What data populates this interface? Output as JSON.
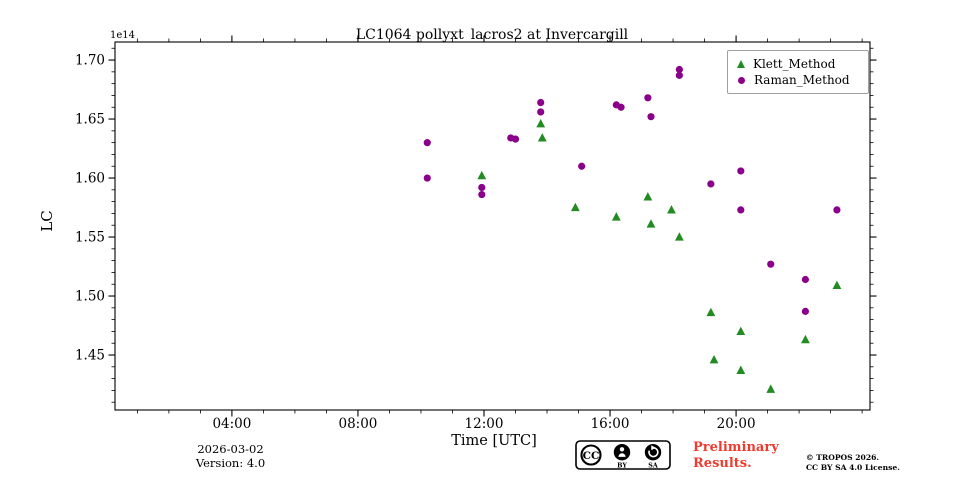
{
  "title": "LC1064 pollyxt_lacros2 at Invercargill",
  "offset_label": "1e14",
  "axes": {
    "xlabel": "Time [UTC]",
    "ylabel": "LC",
    "xlim": [
      0.29,
      24.25
    ],
    "ylim": [
      1.4034,
      1.7153
    ],
    "x_major_ticks": [
      {
        "t": 4,
        "label": "04:00"
      },
      {
        "t": 8,
        "label": "08:00"
      },
      {
        "t": 12,
        "label": "12:00"
      },
      {
        "t": 16,
        "label": "16:00"
      },
      {
        "t": 20,
        "label": "20:00"
      }
    ],
    "x_minor_step_hours": 1,
    "y_major_ticks": [
      {
        "v": 1.45,
        "label": "1.45"
      },
      {
        "v": 1.5,
        "label": "1.50"
      },
      {
        "v": 1.55,
        "label": "1.55"
      },
      {
        "v": 1.6,
        "label": "1.60"
      },
      {
        "v": 1.65,
        "label": "1.65"
      },
      {
        "v": 1.7,
        "label": "1.70"
      }
    ],
    "y_minor_step": 0.01,
    "grid": false
  },
  "legend": {
    "position": "upper right",
    "items": [
      {
        "label": "Klett_Method",
        "marker": "triangle",
        "color": "#228b22"
      },
      {
        "label": "Raman_Method",
        "marker": "circle",
        "color": "#8b008b"
      }
    ]
  },
  "chart_data": {
    "type": "scatter",
    "title": "LC1064 pollyxt_lacros2 at Invercargill",
    "xlabel": "Time [UTC]",
    "ylabel": "LC",
    "y_scale_factor": "1e14",
    "xlim_hours": [
      0.29,
      24.25
    ],
    "ylim": [
      1.4034,
      1.7153
    ],
    "series": [
      {
        "name": "Klett_Method",
        "marker": "triangle",
        "color": "#228b22",
        "points": [
          [
            11.93,
            1.602
          ],
          [
            13.8,
            1.646
          ],
          [
            13.85,
            1.634
          ],
          [
            14.9,
            1.575
          ],
          [
            16.2,
            1.567
          ],
          [
            17.2,
            1.584
          ],
          [
            17.3,
            1.561
          ],
          [
            17.95,
            1.573
          ],
          [
            18.2,
            1.55
          ],
          [
            19.2,
            1.486
          ],
          [
            19.3,
            1.446
          ],
          [
            20.15,
            1.47
          ],
          [
            20.15,
            1.437
          ],
          [
            21.1,
            1.421
          ],
          [
            22.2,
            1.463
          ],
          [
            23.2,
            1.509
          ]
        ]
      },
      {
        "name": "Raman_Method",
        "marker": "circle",
        "color": "#8b008b",
        "points": [
          [
            10.2,
            1.63
          ],
          [
            10.2,
            1.6
          ],
          [
            11.93,
            1.592
          ],
          [
            11.93,
            1.586
          ],
          [
            12.85,
            1.634
          ],
          [
            13.0,
            1.633
          ],
          [
            13.8,
            1.664
          ],
          [
            13.8,
            1.656
          ],
          [
            15.1,
            1.61
          ],
          [
            16.2,
            1.662
          ],
          [
            16.35,
            1.66
          ],
          [
            17.2,
            1.668
          ],
          [
            17.3,
            1.652
          ],
          [
            18.2,
            1.692
          ],
          [
            18.2,
            1.687
          ],
          [
            19.2,
            1.595
          ],
          [
            20.15,
            1.606
          ],
          [
            20.15,
            1.573
          ],
          [
            21.1,
            1.527
          ],
          [
            22.2,
            1.514
          ],
          [
            22.2,
            1.487
          ],
          [
            23.2,
            1.573
          ]
        ]
      }
    ]
  },
  "footer": {
    "date": "2026-03-02",
    "version": "Version: 4.0",
    "preliminary_line1": "Preliminary",
    "preliminary_line2": "Results.",
    "copyright_line1": "© TROPOS 2026.",
    "copyright_line2": "CC BY SA 4.0 License.",
    "cc_badge": {
      "cc": "CC",
      "by": "BY",
      "sa": "SA"
    }
  },
  "colors": {
    "klett": "#228b22",
    "raman": "#8b008b",
    "preliminary": "#ef3b2f",
    "frame": "#000000",
    "legend_border": "#a0a0a0"
  }
}
